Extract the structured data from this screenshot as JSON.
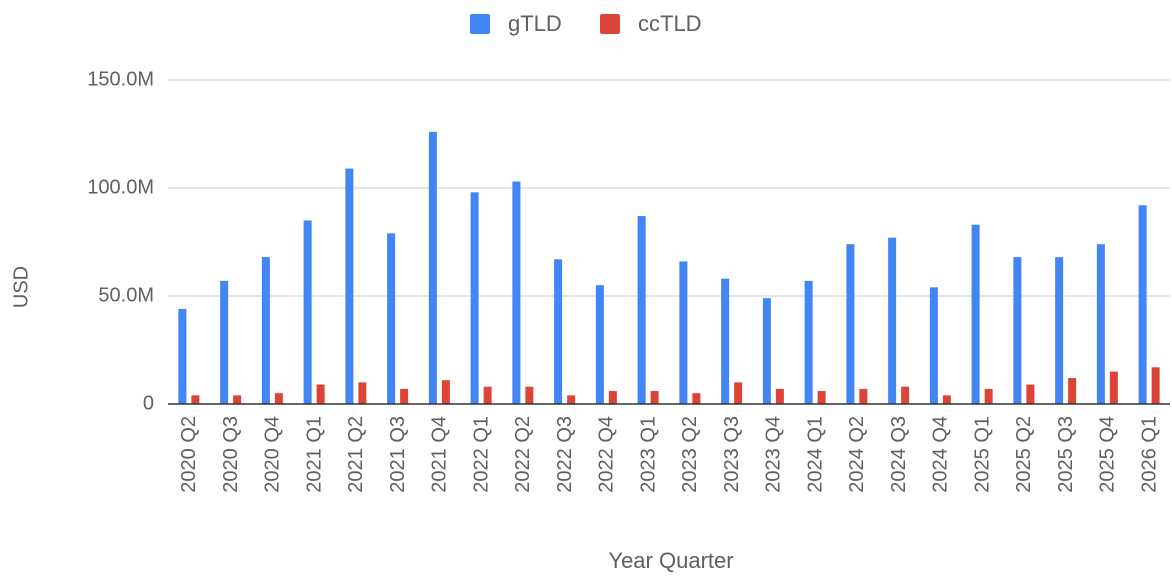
{
  "chart_data": {
    "type": "bar",
    "x_label": "Year Quarter",
    "y_label": "USD",
    "categories": [
      "2020 Q2",
      "2020 Q3",
      "2020 Q4",
      "2021 Q1",
      "2021 Q2",
      "2021 Q3",
      "2021 Q4",
      "2022 Q1",
      "2022 Q2",
      "2022 Q3",
      "2022 Q4",
      "2023 Q1",
      "2023 Q2",
      "2023 Q3",
      "2023 Q4",
      "2024 Q1",
      "2024 Q2",
      "2024 Q3",
      "2024 Q4",
      "2025 Q1",
      "2025 Q2",
      "2025 Q3",
      "2025 Q4",
      "2026 Q1"
    ],
    "series": [
      {
        "name": "gTLD",
        "color": "#4285f4",
        "values": [
          44000000,
          57000000,
          68000000,
          85000000,
          109000000,
          79000000,
          126000000,
          98000000,
          103000000,
          67000000,
          55000000,
          87000000,
          66000000,
          58000000,
          49000000,
          57000000,
          74000000,
          77000000,
          54000000,
          83000000,
          68000000,
          68000000,
          74000000,
          92000000
        ]
      },
      {
        "name": "ccTLD",
        "color": "#db4437",
        "values": [
          4000000,
          4000000,
          5000000,
          9000000,
          10000000,
          7000000,
          11000000,
          8000000,
          8000000,
          4000000,
          6000000,
          6000000,
          5000000,
          10000000,
          7000000,
          6000000,
          7000000,
          8000000,
          4000000,
          7000000,
          9000000,
          12000000,
          15000000,
          17000000
        ]
      }
    ],
    "ylim": [
      0,
      150000000
    ],
    "yticks": [
      0,
      {
        "value": 50000000,
        "label": "50.0M"
      },
      {
        "value": 100000000,
        "label": "100.0M"
      },
      {
        "value": 150000000,
        "label": "150.0M"
      }
    ],
    "grid": true,
    "legend": "top"
  }
}
